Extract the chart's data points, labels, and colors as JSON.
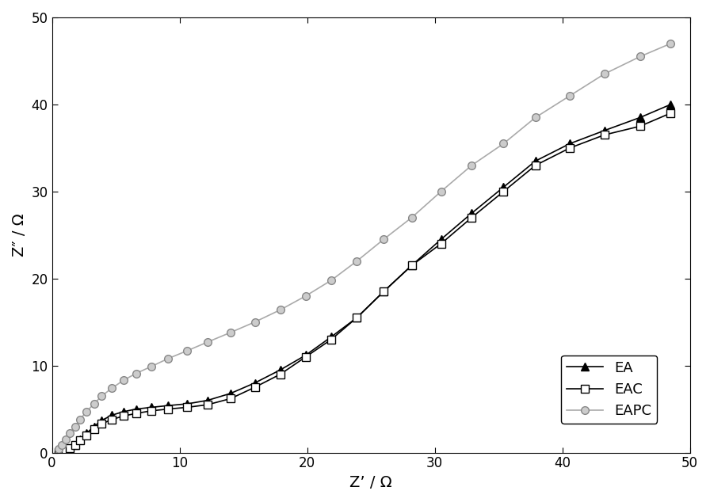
{
  "xlabel": "Z’ / Ω",
  "ylabel": "Z″ / Ω",
  "xlim": [
    0,
    50
  ],
  "ylim": [
    0,
    50
  ],
  "xticks": [
    0,
    10,
    20,
    30,
    40,
    50
  ],
  "yticks": [
    0,
    10,
    20,
    30,
    40,
    50
  ],
  "background_color": "#ffffff",
  "series": [
    {
      "label": "EA",
      "color": "#000000",
      "marker": "^",
      "markersize": 7,
      "markerfacecolor": "#000000",
      "markeredgecolor": "#000000",
      "linewidth": 1.2,
      "x": [
        0.5,
        0.8,
        1.1,
        1.4,
        1.8,
        2.2,
        2.7,
        3.3,
        3.9,
        4.7,
        5.6,
        6.6,
        7.8,
        9.1,
        10.6,
        12.2,
        14.0,
        15.9,
        17.9,
        19.9,
        21.9,
        23.9,
        26.0,
        28.2,
        30.5,
        32.9,
        35.4,
        37.9,
        40.6,
        43.3,
        46.1,
        48.5
      ],
      "y": [
        0.05,
        0.12,
        0.25,
        0.5,
        0.9,
        1.5,
        2.2,
        3.0,
        3.7,
        4.3,
        4.7,
        5.0,
        5.2,
        5.4,
        5.6,
        6.0,
        6.8,
        8.0,
        9.5,
        11.2,
        13.3,
        15.5,
        18.5,
        21.5,
        24.5,
        27.5,
        30.5,
        33.5,
        35.5,
        37.0,
        38.5,
        40.0
      ]
    },
    {
      "label": "EAC",
      "color": "#000000",
      "marker": "s",
      "markersize": 7,
      "markerfacecolor": "#ffffff",
      "markeredgecolor": "#000000",
      "linewidth": 1.2,
      "x": [
        0.5,
        0.8,
        1.1,
        1.4,
        1.8,
        2.2,
        2.7,
        3.3,
        3.9,
        4.7,
        5.6,
        6.6,
        7.8,
        9.1,
        10.6,
        12.2,
        14.0,
        15.9,
        17.9,
        19.9,
        21.9,
        23.9,
        26.0,
        28.2,
        30.5,
        32.9,
        35.4,
        37.9,
        40.6,
        43.3,
        46.1,
        48.5
      ],
      "y": [
        0.05,
        0.12,
        0.25,
        0.5,
        0.9,
        1.4,
        2.0,
        2.7,
        3.3,
        3.8,
        4.2,
        4.5,
        4.8,
        5.0,
        5.2,
        5.5,
        6.2,
        7.5,
        9.0,
        11.0,
        13.0,
        15.5,
        18.5,
        21.5,
        24.0,
        27.0,
        30.0,
        33.0,
        35.0,
        36.5,
        37.5,
        39.0
      ]
    },
    {
      "label": "EAPC",
      "color": "#aaaaaa",
      "marker": "o",
      "markersize": 7,
      "markerfacecolor": "#cccccc",
      "markeredgecolor": "#888888",
      "linewidth": 1.2,
      "x": [
        0.5,
        0.8,
        1.1,
        1.4,
        1.8,
        2.2,
        2.7,
        3.3,
        3.9,
        4.7,
        5.6,
        6.6,
        7.8,
        9.1,
        10.6,
        12.2,
        14.0,
        15.9,
        17.9,
        19.9,
        21.9,
        23.9,
        26.0,
        28.2,
        30.5,
        32.9,
        35.4,
        37.9,
        40.6,
        43.3,
        46.1,
        48.5
      ],
      "y": [
        0.4,
        0.9,
        1.5,
        2.2,
        3.0,
        3.8,
        4.7,
        5.6,
        6.5,
        7.4,
        8.3,
        9.1,
        9.9,
        10.8,
        11.7,
        12.7,
        13.8,
        15.0,
        16.4,
        18.0,
        19.8,
        22.0,
        24.5,
        27.0,
        30.0,
        33.0,
        35.5,
        38.5,
        41.0,
        43.5,
        45.5,
        47.0
      ]
    }
  ]
}
